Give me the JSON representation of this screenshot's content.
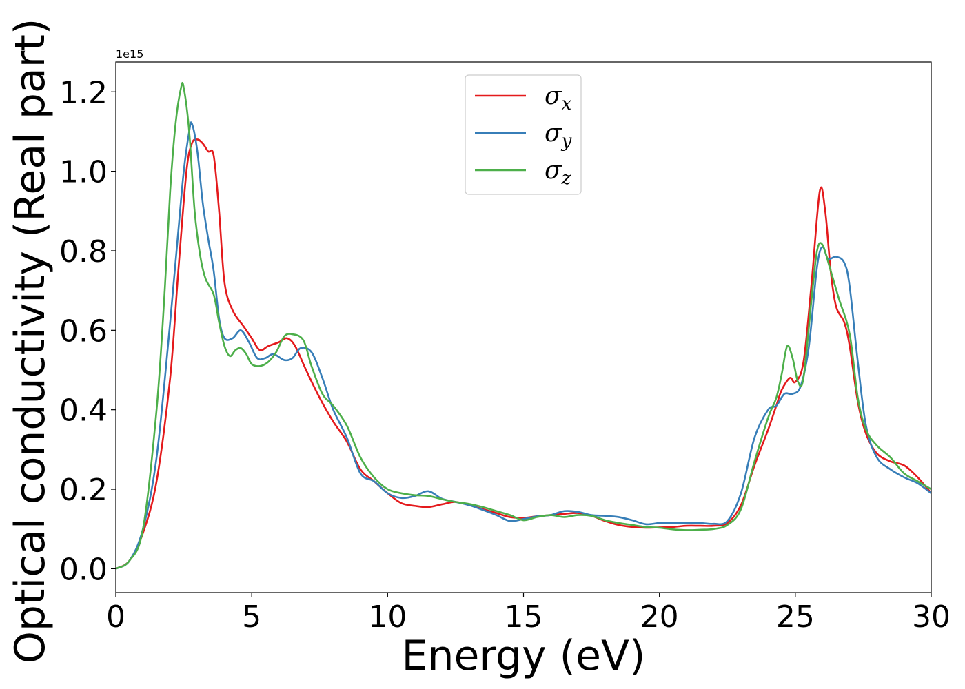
{
  "chart_data": {
    "type": "line",
    "xlabel": "Energy (eV)",
    "ylabel": "Optical conductivity (Real part)",
    "y_offset_label": "1e15",
    "xlim": [
      0,
      30
    ],
    "ylim": [
      -0.06,
      1.275
    ],
    "x_ticks": [
      0,
      5,
      10,
      15,
      20,
      25,
      30
    ],
    "x_tick_labels": [
      "0",
      "5",
      "10",
      "15",
      "20",
      "25",
      "30"
    ],
    "y_ticks": [
      0.0,
      0.2,
      0.4,
      0.6,
      0.8,
      1.0,
      1.2
    ],
    "y_tick_labels": [
      "0.0",
      "0.2",
      "0.4",
      "0.6",
      "0.8",
      "1.0",
      "1.2"
    ],
    "grid": false,
    "legend_position": "top-center",
    "series": [
      {
        "name": "σx",
        "symbol": "σ",
        "subscript": "x",
        "color": "#e41a1c",
        "points": [
          [
            0,
            0
          ],
          [
            0.5,
            0.02
          ],
          [
            1.0,
            0.09
          ],
          [
            1.5,
            0.22
          ],
          [
            2.0,
            0.48
          ],
          [
            2.3,
            0.75
          ],
          [
            2.6,
            1.0
          ],
          [
            2.8,
            1.07
          ],
          [
            3.0,
            1.08
          ],
          [
            3.2,
            1.07
          ],
          [
            3.4,
            1.05
          ],
          [
            3.6,
            1.04
          ],
          [
            3.8,
            0.9
          ],
          [
            4.0,
            0.72
          ],
          [
            4.3,
            0.65
          ],
          [
            4.7,
            0.61
          ],
          [
            5.0,
            0.58
          ],
          [
            5.3,
            0.55
          ],
          [
            5.6,
            0.56
          ],
          [
            6.0,
            0.57
          ],
          [
            6.3,
            0.58
          ],
          [
            6.6,
            0.56
          ],
          [
            7.0,
            0.5
          ],
          [
            7.5,
            0.43
          ],
          [
            8.0,
            0.37
          ],
          [
            8.5,
            0.32
          ],
          [
            9.0,
            0.25
          ],
          [
            9.5,
            0.22
          ],
          [
            10.0,
            0.19
          ],
          [
            10.5,
            0.165
          ],
          [
            11.0,
            0.158
          ],
          [
            11.5,
            0.155
          ],
          [
            12.0,
            0.162
          ],
          [
            12.5,
            0.168
          ],
          [
            13.0,
            0.16
          ],
          [
            13.5,
            0.15
          ],
          [
            14.0,
            0.14
          ],
          [
            14.5,
            0.13
          ],
          [
            15.0,
            0.128
          ],
          [
            15.5,
            0.132
          ],
          [
            16.0,
            0.135
          ],
          [
            16.5,
            0.138
          ],
          [
            17.0,
            0.14
          ],
          [
            17.5,
            0.133
          ],
          [
            18.0,
            0.12
          ],
          [
            18.5,
            0.11
          ],
          [
            19.0,
            0.105
          ],
          [
            19.5,
            0.103
          ],
          [
            20.0,
            0.104
          ],
          [
            20.5,
            0.105
          ],
          [
            21.0,
            0.108
          ],
          [
            21.5,
            0.108
          ],
          [
            22.0,
            0.108
          ],
          [
            22.5,
            0.115
          ],
          [
            23.0,
            0.16
          ],
          [
            23.5,
            0.26
          ],
          [
            24.0,
            0.35
          ],
          [
            24.3,
            0.41
          ],
          [
            24.5,
            0.45
          ],
          [
            24.8,
            0.48
          ],
          [
            25.0,
            0.47
          ],
          [
            25.3,
            0.52
          ],
          [
            25.6,
            0.72
          ],
          [
            25.9,
            0.95
          ],
          [
            26.1,
            0.9
          ],
          [
            26.3,
            0.75
          ],
          [
            26.5,
            0.66
          ],
          [
            26.8,
            0.62
          ],
          [
            27.0,
            0.56
          ],
          [
            27.3,
            0.42
          ],
          [
            27.6,
            0.34
          ],
          [
            28.0,
            0.29
          ],
          [
            28.5,
            0.27
          ],
          [
            29.0,
            0.26
          ],
          [
            29.5,
            0.23
          ],
          [
            30.0,
            0.19
          ]
        ]
      },
      {
        "name": "σy",
        "symbol": "σ",
        "subscript": "y",
        "color": "#377eb8",
        "points": [
          [
            0,
            0
          ],
          [
            0.5,
            0.02
          ],
          [
            1.0,
            0.1
          ],
          [
            1.5,
            0.28
          ],
          [
            2.0,
            0.62
          ],
          [
            2.3,
            0.85
          ],
          [
            2.5,
            1.0
          ],
          [
            2.7,
            1.1
          ],
          [
            2.8,
            1.12
          ],
          [
            3.0,
            1.05
          ],
          [
            3.2,
            0.92
          ],
          [
            3.4,
            0.83
          ],
          [
            3.6,
            0.75
          ],
          [
            3.8,
            0.63
          ],
          [
            4.0,
            0.58
          ],
          [
            4.3,
            0.58
          ],
          [
            4.6,
            0.6
          ],
          [
            4.9,
            0.57
          ],
          [
            5.2,
            0.53
          ],
          [
            5.5,
            0.53
          ],
          [
            5.8,
            0.54
          ],
          [
            6.2,
            0.525
          ],
          [
            6.5,
            0.53
          ],
          [
            6.8,
            0.555
          ],
          [
            7.2,
            0.545
          ],
          [
            7.6,
            0.48
          ],
          [
            8.0,
            0.4
          ],
          [
            8.5,
            0.33
          ],
          [
            9.0,
            0.24
          ],
          [
            9.5,
            0.22
          ],
          [
            10.0,
            0.19
          ],
          [
            10.5,
            0.178
          ],
          [
            11.0,
            0.183
          ],
          [
            11.5,
            0.195
          ],
          [
            12.0,
            0.176
          ],
          [
            12.5,
            0.168
          ],
          [
            13.0,
            0.16
          ],
          [
            13.5,
            0.148
          ],
          [
            14.0,
            0.135
          ],
          [
            14.5,
            0.12
          ],
          [
            15.0,
            0.125
          ],
          [
            15.5,
            0.132
          ],
          [
            16.0,
            0.135
          ],
          [
            16.5,
            0.145
          ],
          [
            17.0,
            0.143
          ],
          [
            17.5,
            0.135
          ],
          [
            18.0,
            0.133
          ],
          [
            18.5,
            0.13
          ],
          [
            19.0,
            0.122
          ],
          [
            19.5,
            0.112
          ],
          [
            20.0,
            0.115
          ],
          [
            20.5,
            0.115
          ],
          [
            21.0,
            0.115
          ],
          [
            21.5,
            0.115
          ],
          [
            22.0,
            0.113
          ],
          [
            22.5,
            0.12
          ],
          [
            23.0,
            0.19
          ],
          [
            23.5,
            0.33
          ],
          [
            24.0,
            0.4
          ],
          [
            24.3,
            0.41
          ],
          [
            24.6,
            0.44
          ],
          [
            24.9,
            0.44
          ],
          [
            25.2,
            0.46
          ],
          [
            25.5,
            0.56
          ],
          [
            25.8,
            0.76
          ],
          [
            26.0,
            0.81
          ],
          [
            26.2,
            0.78
          ],
          [
            26.5,
            0.785
          ],
          [
            26.8,
            0.77
          ],
          [
            27.0,
            0.71
          ],
          [
            27.3,
            0.52
          ],
          [
            27.6,
            0.36
          ],
          [
            28.0,
            0.28
          ],
          [
            28.5,
            0.25
          ],
          [
            29.0,
            0.23
          ],
          [
            29.5,
            0.215
          ],
          [
            30.0,
            0.19
          ]
        ]
      },
      {
        "name": "σz",
        "symbol": "σ",
        "subscript": "z",
        "color": "#4daf4a",
        "points": [
          [
            0,
            0
          ],
          [
            0.5,
            0.02
          ],
          [
            1.0,
            0.1
          ],
          [
            1.5,
            0.4
          ],
          [
            1.8,
            0.7
          ],
          [
            2.0,
            0.95
          ],
          [
            2.2,
            1.12
          ],
          [
            2.4,
            1.21
          ],
          [
            2.5,
            1.21
          ],
          [
            2.7,
            1.1
          ],
          [
            2.9,
            0.9
          ],
          [
            3.1,
            0.79
          ],
          [
            3.3,
            0.73
          ],
          [
            3.6,
            0.69
          ],
          [
            3.8,
            0.62
          ],
          [
            4.0,
            0.56
          ],
          [
            4.2,
            0.535
          ],
          [
            4.4,
            0.55
          ],
          [
            4.6,
            0.555
          ],
          [
            4.8,
            0.54
          ],
          [
            5.0,
            0.515
          ],
          [
            5.3,
            0.51
          ],
          [
            5.6,
            0.52
          ],
          [
            5.9,
            0.545
          ],
          [
            6.2,
            0.585
          ],
          [
            6.5,
            0.59
          ],
          [
            6.9,
            0.575
          ],
          [
            7.2,
            0.51
          ],
          [
            7.6,
            0.44
          ],
          [
            8.0,
            0.41
          ],
          [
            8.5,
            0.36
          ],
          [
            9.0,
            0.28
          ],
          [
            9.5,
            0.23
          ],
          [
            10.0,
            0.2
          ],
          [
            10.5,
            0.19
          ],
          [
            11.0,
            0.185
          ],
          [
            11.5,
            0.183
          ],
          [
            12.0,
            0.175
          ],
          [
            12.5,
            0.168
          ],
          [
            13.0,
            0.163
          ],
          [
            13.5,
            0.155
          ],
          [
            14.0,
            0.145
          ],
          [
            14.5,
            0.135
          ],
          [
            15.0,
            0.122
          ],
          [
            15.5,
            0.13
          ],
          [
            16.0,
            0.135
          ],
          [
            16.5,
            0.13
          ],
          [
            17.0,
            0.135
          ],
          [
            17.5,
            0.133
          ],
          [
            18.0,
            0.122
          ],
          [
            18.5,
            0.115
          ],
          [
            19.0,
            0.11
          ],
          [
            19.5,
            0.105
          ],
          [
            20.0,
            0.103
          ],
          [
            20.5,
            0.099
          ],
          [
            21.0,
            0.097
          ],
          [
            21.5,
            0.098
          ],
          [
            22.0,
            0.1
          ],
          [
            22.5,
            0.11
          ],
          [
            23.0,
            0.15
          ],
          [
            23.5,
            0.27
          ],
          [
            24.0,
            0.38
          ],
          [
            24.3,
            0.43
          ],
          [
            24.5,
            0.49
          ],
          [
            24.7,
            0.56
          ],
          [
            24.9,
            0.53
          ],
          [
            25.1,
            0.47
          ],
          [
            25.3,
            0.48
          ],
          [
            25.6,
            0.68
          ],
          [
            25.8,
            0.8
          ],
          [
            26.0,
            0.815
          ],
          [
            26.3,
            0.75
          ],
          [
            26.6,
            0.68
          ],
          [
            27.0,
            0.59
          ],
          [
            27.3,
            0.43
          ],
          [
            27.6,
            0.35
          ],
          [
            28.0,
            0.31
          ],
          [
            28.5,
            0.28
          ],
          [
            29.0,
            0.24
          ],
          [
            29.5,
            0.22
          ],
          [
            30.0,
            0.2
          ]
        ]
      }
    ]
  }
}
